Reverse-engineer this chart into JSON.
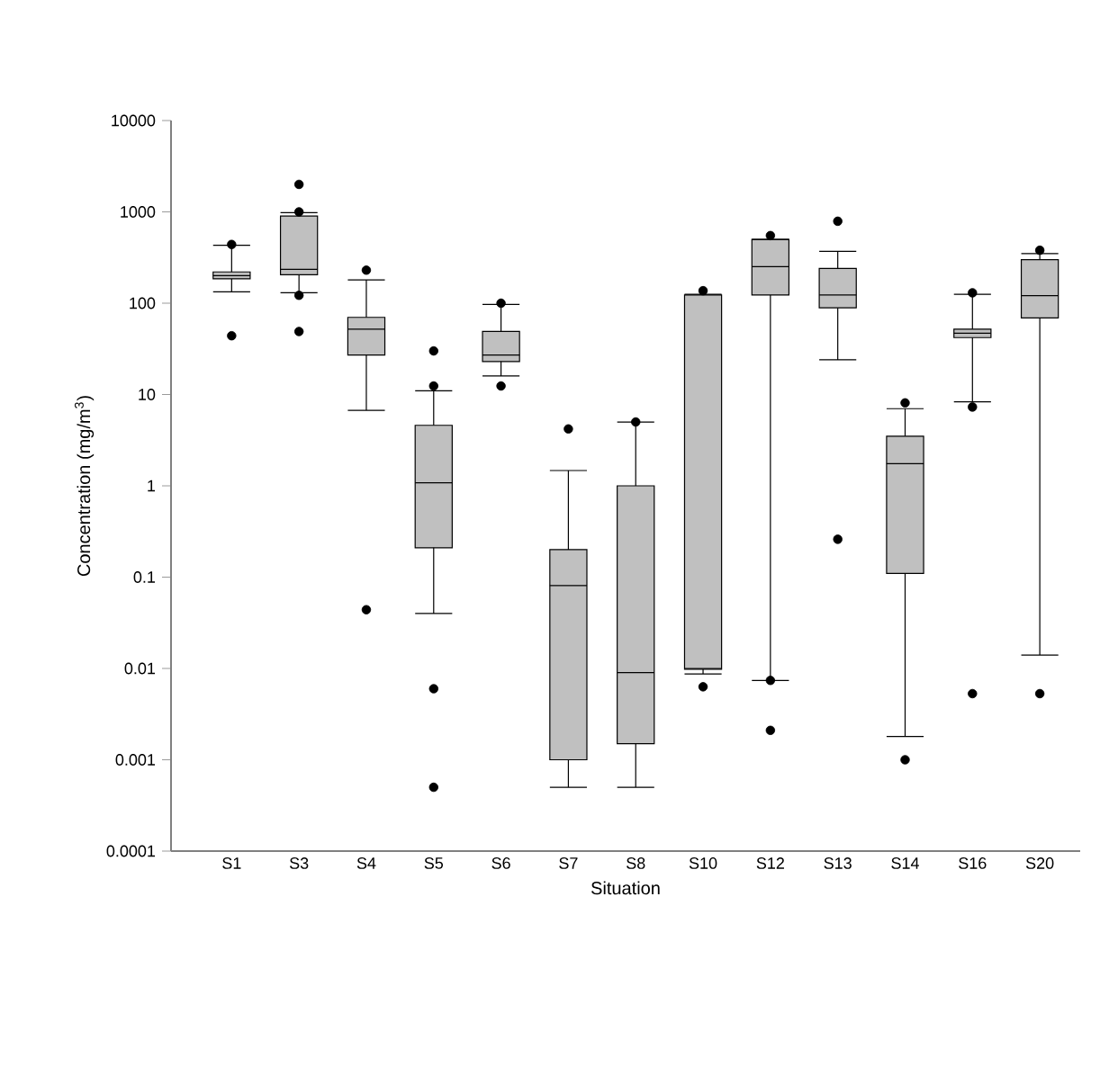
{
  "chart_data": {
    "type": "box",
    "xlabel": "Situation",
    "ylabel": "Concentration (mg/m$^{3}$)",
    "log": "y",
    "grid": false,
    "color": "#c0c0c0",
    "categories": [
      "S1",
      "S3",
      "S4",
      "S5",
      "S6",
      "S7",
      "S8",
      "S10",
      "S12",
      "S13",
      "S14",
      "S16",
      "S20"
    ],
    "ylim": [
      0.0001,
      10000
    ],
    "yticks": [
      {
        "value": 0.0001,
        "label": "0.0001"
      },
      {
        "value": 0.001,
        "label": "0.001"
      },
      {
        "value": 0.01,
        "label": "0.01"
      },
      {
        "value": 0.1,
        "label": "0.1"
      },
      {
        "value": 1,
        "label": "1"
      },
      {
        "value": 10,
        "label": "10"
      },
      {
        "value": 100,
        "label": "100"
      },
      {
        "value": 1000,
        "label": "1000"
      },
      {
        "value": 10000,
        "label": "10000"
      }
    ],
    "boxes": [
      {
        "low": 133,
        "q1": 185,
        "median": 200,
        "q3": 220,
        "high": 430,
        "outliers": [
          440,
          44
        ]
      },
      {
        "low": 130,
        "q1": 205,
        "median": 235,
        "q3": 900,
        "high": 980,
        "outliers": [
          2000,
          1000,
          122,
          49
        ]
      },
      {
        "low": 6.7,
        "q1": 27,
        "median": 52,
        "q3": 70,
        "high": 180,
        "outliers": [
          230,
          0.044
        ]
      },
      {
        "low": 0.04,
        "q1": 0.21,
        "median": 1.08,
        "q3": 4.6,
        "high": 11,
        "outliers": [
          30,
          12.4,
          0.006,
          0.0005
        ]
      },
      {
        "low": 16,
        "q1": 23,
        "median": 27,
        "q3": 49,
        "high": 97,
        "outliers": [
          100,
          12.4
        ]
      },
      {
        "low": 0.0005,
        "q1": 0.001,
        "median": 0.081,
        "q3": 0.2,
        "high": 1.47,
        "outliers": [
          4.2
        ]
      },
      {
        "low": 0.0005,
        "q1": 0.0015,
        "median": 0.009,
        "q3": 1.0,
        "high": 5.0,
        "outliers": [
          5.0
        ]
      },
      {
        "low": 0.0087,
        "q1": 0.0098,
        "median": 0.01,
        "q3": 123,
        "high": 125,
        "outliers": [
          137,
          0.0063
        ]
      },
      {
        "low": 0.0074,
        "q1": 123,
        "median": 251,
        "q3": 500,
        "high": 500,
        "outliers": [
          550,
          0.0074,
          0.0021
        ]
      },
      {
        "low": 24,
        "q1": 89,
        "median": 123,
        "q3": 240,
        "high": 370,
        "outliers": [
          790,
          0.26
        ]
      },
      {
        "low": 0.0018,
        "q1": 0.11,
        "median": 1.75,
        "q3": 3.5,
        "high": 7.0,
        "outliers": [
          8.1,
          0.001
        ]
      },
      {
        "low": 8.3,
        "q1": 42,
        "median": 47,
        "q3": 52,
        "high": 125,
        "outliers": [
          130,
          7.3,
          0.0053
        ]
      },
      {
        "low": 0.014,
        "q1": 69,
        "median": 121,
        "q3": 300,
        "high": 350,
        "outliers": [
          380,
          0.0053
        ]
      }
    ]
  }
}
